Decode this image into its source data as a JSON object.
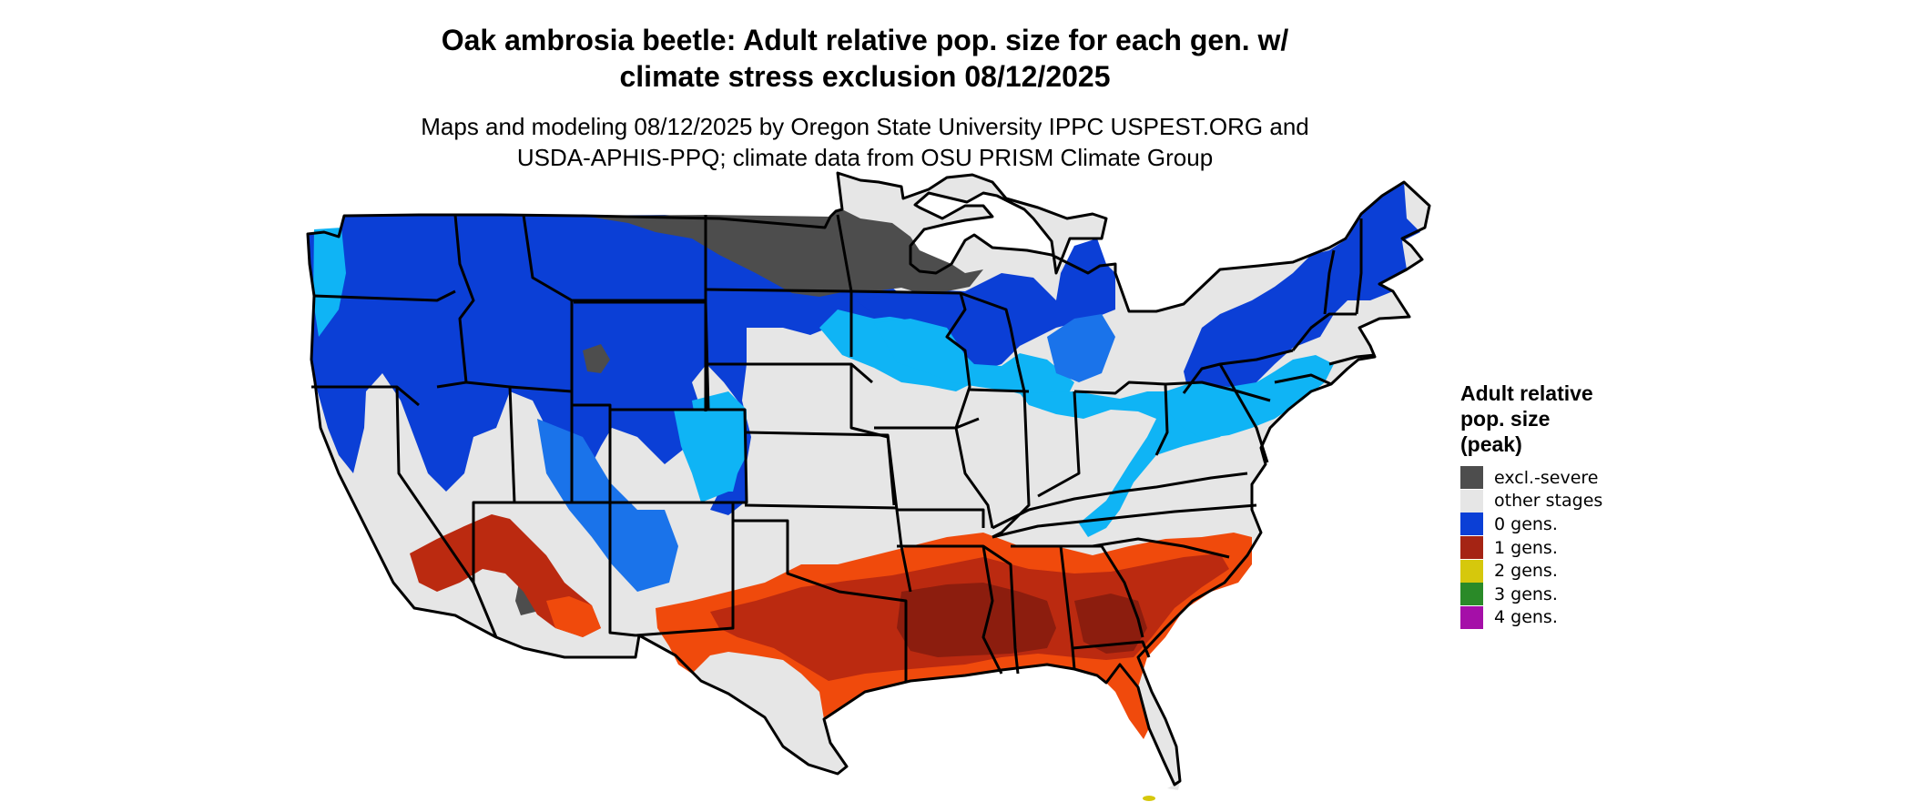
{
  "title": {
    "line1": "Oak ambrosia beetle: Adult relative pop. size for each gen. w/",
    "line2": "climate stress exclusion 08/12/2025"
  },
  "subtitle": {
    "line1": "Maps and modeling 08/12/2025 by Oregon State University IPPC USPEST.ORG and",
    "line2": "USDA-APHIS-PPQ; climate data from OSU PRISM Climate Group"
  },
  "legend": {
    "title_lines": [
      "Adult relative",
      "pop. size",
      "(peak)"
    ],
    "items": [
      {
        "label": "excl.-severe",
        "color": "#4d4d4d"
      },
      {
        "label": "other stages",
        "color": "#e6e6e6"
      },
      {
        "label": "0 gens.",
        "color": "#0b3fd6"
      },
      {
        "label": "1 gens.",
        "color": "#a52414"
      },
      {
        "label": "2 gens.",
        "color": "#d6c80c"
      },
      {
        "label": "3 gens.",
        "color": "#2a8a28"
      },
      {
        "label": "4 gens.",
        "color": "#a50fa8"
      }
    ]
  },
  "map_colors": {
    "excluded": "#4d4d4d",
    "other_stages": "#e6e6e6",
    "zero_gens_dark": "#0b3fd6",
    "zero_gens_mid": "#1a73ea",
    "zero_gens_light": "#0fb4f5",
    "one_gen_dark": "#8c1d0e",
    "one_gen": "#bb2a10",
    "one_gen_light": "#f04a0c",
    "two_gens": "#d6c80c",
    "state_border": "#000000"
  }
}
